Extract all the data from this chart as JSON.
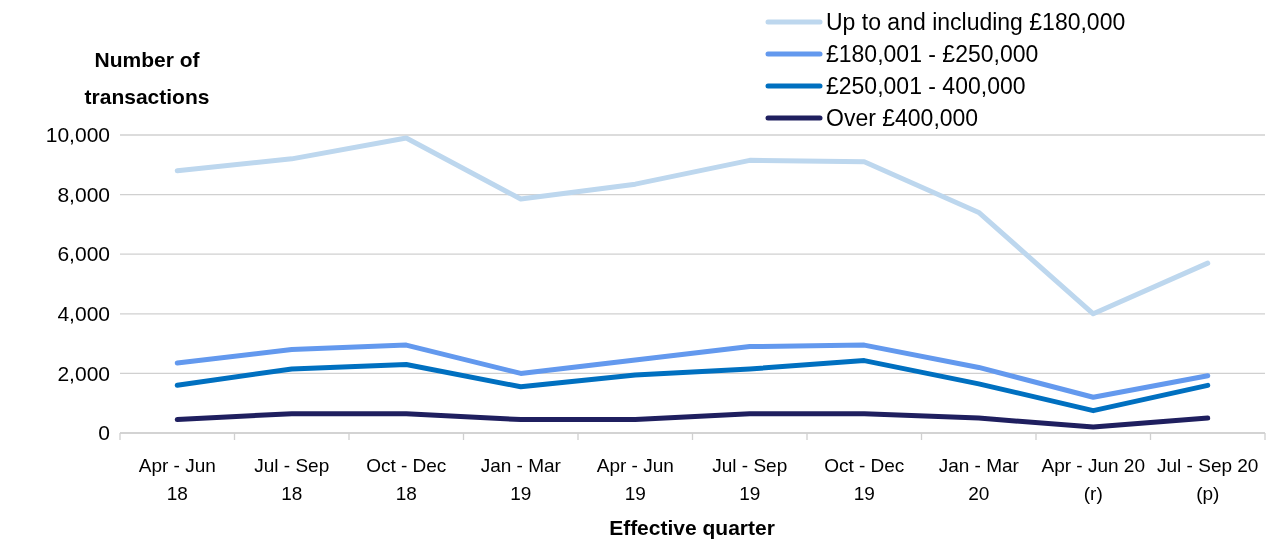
{
  "chart_data": {
    "type": "line",
    "ylabel": "Number of transactions",
    "xlabel": "Effective quarter",
    "categories": [
      "Apr - Jun 18",
      "Jul - Sep 18",
      "Oct - Dec 18",
      "Jan - Mar 19",
      "Apr - Jun 19",
      "Jul - Sep 19",
      "Oct - Dec 19",
      "Jan - Mar 20",
      "Apr - Jun 20 (r)",
      "Jul - Sep 20 (p)"
    ],
    "series": [
      {
        "name": "Up to and including £180,000",
        "color": "#bdd7ee",
        "values": [
          8800,
          9200,
          9900,
          7850,
          8350,
          9150,
          9100,
          7400,
          4000,
          5700
        ]
      },
      {
        "name": "£180,001 - £250,000",
        "color": "#6399ee",
        "values": [
          2350,
          2800,
          2950,
          2000,
          2450,
          2900,
          2950,
          2200,
          1200,
          1920
        ]
      },
      {
        "name": "£250,001 - 400,000",
        "color": "#0070c0",
        "values": [
          1600,
          2150,
          2300,
          1550,
          1950,
          2150,
          2430,
          1650,
          750,
          1600
        ]
      },
      {
        "name": "Over £400,000",
        "color": "#1f1f5f",
        "values": [
          450,
          650,
          650,
          450,
          450,
          650,
          650,
          500,
          200,
          500
        ]
      }
    ],
    "ylim": [
      0,
      10000
    ],
    "yticks": [
      {
        "value": 0,
        "label": "0"
      },
      {
        "value": 2000,
        "label": "2,000"
      },
      {
        "value": 4000,
        "label": "4,000"
      },
      {
        "value": 6000,
        "label": "6,000"
      },
      {
        "value": 8000,
        "label": "8,000"
      },
      {
        "value": 10000,
        "label": "10,000"
      }
    ],
    "grid": "y",
    "legend": "top right",
    "marker": "none",
    "line_style": "solid"
  }
}
